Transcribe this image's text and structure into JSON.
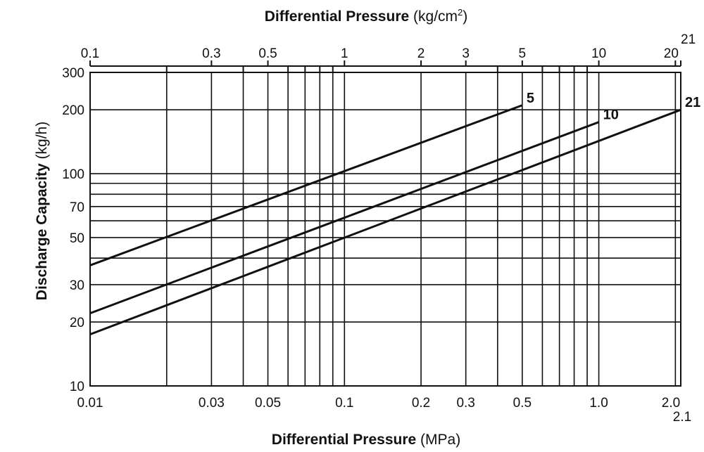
{
  "chart_data": {
    "type": "line",
    "scale": "log-log",
    "top_axis": {
      "title_bold": "Differential Pressure",
      "title_unit": "(kg/cm",
      "title_sup": "2",
      "title_close": ")",
      "labels": [
        "0.1",
        "0.3",
        "0.5",
        "1",
        "2",
        "3",
        "5",
        "10",
        "20",
        "21"
      ],
      "label_values": [
        0.1,
        0.3,
        0.5,
        1,
        2,
        3,
        5,
        10,
        20,
        21
      ],
      "range": [
        0.1,
        21
      ],
      "minor_ticks": [
        0.2,
        0.4,
        0.6,
        0.7,
        0.8,
        0.9,
        4,
        6,
        7,
        8,
        9
      ]
    },
    "x_axis": {
      "title_bold": "Differential Pressure",
      "title_unit": "(MPa)",
      "labels": [
        "0.01",
        "0.03",
        "0.05",
        "0.1",
        "0.2",
        "0.3",
        "0.5",
        "1.0",
        "2.0",
        "2.1"
      ],
      "label_values": [
        0.01,
        0.03,
        0.05,
        0.1,
        0.2,
        0.3,
        0.5,
        1.0,
        2.0,
        2.1
      ],
      "range": [
        0.01,
        2.1
      ],
      "gridlines": [
        0.02,
        0.03,
        0.04,
        0.05,
        0.06,
        0.07,
        0.08,
        0.09,
        0.1,
        0.2,
        0.3,
        0.4,
        0.5,
        0.6,
        0.7,
        0.8,
        0.9,
        1.0,
        2.0,
        2.1
      ]
    },
    "y_axis": {
      "title_bold": "Discharge Capacity",
      "title_unit": "(kg/h)",
      "labels": [
        "10",
        "20",
        "30",
        "50",
        "70",
        "100",
        "200",
        "300"
      ],
      "label_values": [
        10,
        20,
        30,
        50,
        70,
        100,
        200,
        300
      ],
      "range": [
        10,
        300
      ],
      "gridlines": [
        20,
        30,
        40,
        50,
        60,
        70,
        80,
        90,
        100,
        200,
        300
      ]
    },
    "series": [
      {
        "name": "5",
        "x": [
          0.01,
          0.5
        ],
        "y": [
          37,
          210
        ]
      },
      {
        "name": "10",
        "x": [
          0.01,
          1.0
        ],
        "y": [
          22,
          175
        ]
      },
      {
        "name": "21",
        "x": [
          0.01,
          2.1
        ],
        "y": [
          17.5,
          200
        ]
      }
    ]
  }
}
